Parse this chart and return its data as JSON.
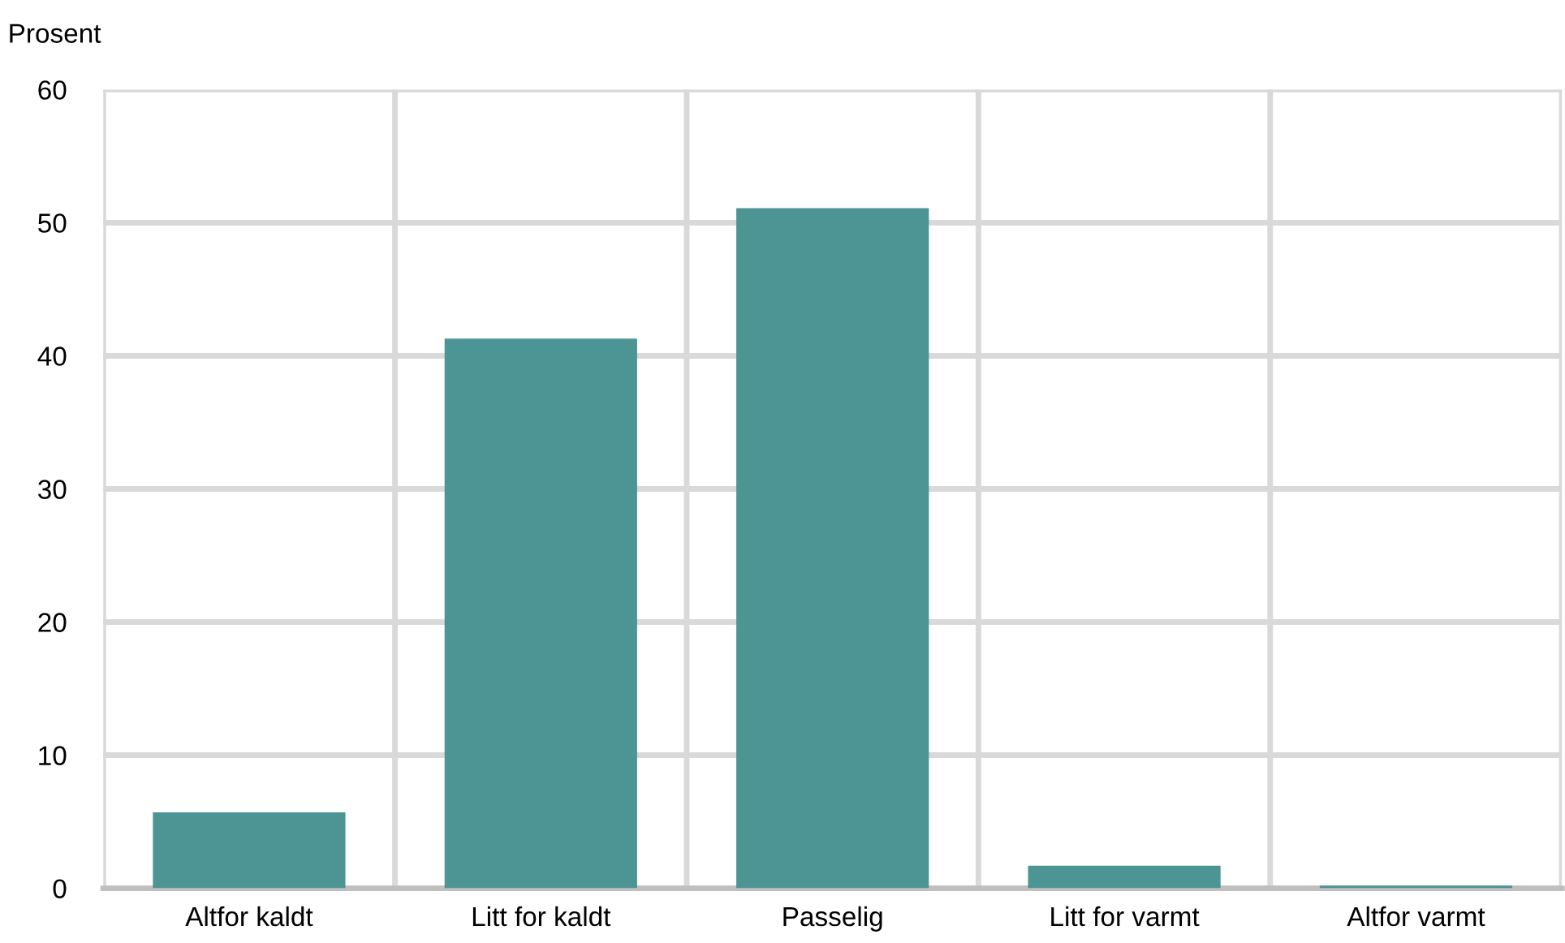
{
  "chart_data": {
    "type": "bar",
    "ylabel": "Prosent",
    "categories": [
      "Altfor kaldt",
      "Litt for kaldt",
      "Passelig",
      "Litt for varmt",
      "Altfor varmt"
    ],
    "values": [
      5.7,
      41.3,
      51.1,
      1.7,
      0.2
    ],
    "color": "#4d9494",
    "ylim": [
      0,
      60
    ],
    "yticks": [
      0,
      10,
      20,
      30,
      40,
      50,
      60
    ],
    "grid": true
  }
}
